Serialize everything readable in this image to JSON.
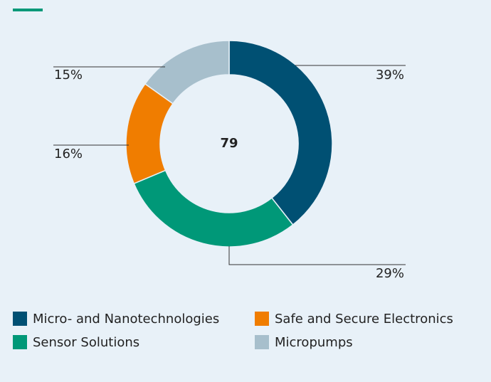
{
  "chart_data": {
    "type": "pie",
    "center_label": "79",
    "categories": [
      "Micro- and Nanotechnologies",
      "Sensor Solutions",
      "Safe and Secure Electronics",
      "Micropumps"
    ],
    "values": [
      39,
      29,
      16,
      15
    ],
    "value_labels": [
      "39%",
      "29%",
      "16%",
      "15%"
    ],
    "colors": [
      "#005073",
      "#009878",
      "#f07d00",
      "#a7bfcc"
    ]
  }
}
